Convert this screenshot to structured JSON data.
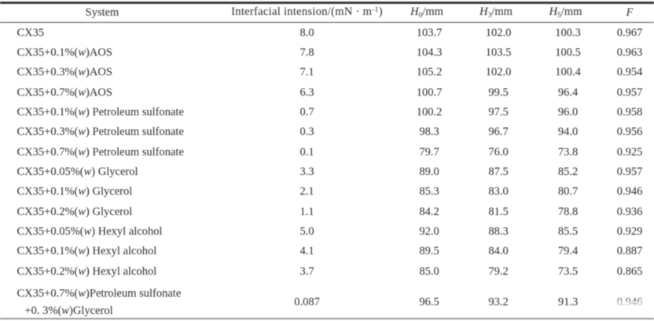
{
  "colors": {
    "background": "#ffffff",
    "text": "#2e2e2e",
    "rule_top": "#3a3a3a",
    "rule_mid": "#4a4a4a",
    "rule_bottom": "#999999"
  },
  "table": {
    "columns": [
      {
        "key": "system",
        "label": "System"
      },
      {
        "key": "interfacial_tension",
        "label_parts": {
          "pre": "Interfacial intension/(mN · m",
          "sup": "-1",
          "post": ")"
        }
      },
      {
        "key": "h0",
        "label_parts": {
          "var": "H",
          "sub": "0",
          "unit": "/mm"
        }
      },
      {
        "key": "h3",
        "label_parts": {
          "var": "H",
          "sub": "3",
          "unit": "/mm"
        }
      },
      {
        "key": "h5",
        "label_parts": {
          "var": "H",
          "sub": "5",
          "unit": "/mm"
        }
      },
      {
        "key": "f",
        "label_parts": {
          "var": "F"
        }
      }
    ],
    "rows": [
      {
        "system": [
          "CX35"
        ],
        "values": [
          "8.0",
          "103.7",
          "102.0",
          "100.3",
          "0.967"
        ]
      },
      {
        "system": [
          "CX35+0.1%(w)AOS"
        ],
        "values": [
          "7.8",
          "104.3",
          "103.5",
          "100.5",
          "0.963"
        ]
      },
      {
        "system": [
          "CX35+0.3%(w)AOS"
        ],
        "values": [
          "7.1",
          "105.2",
          "102.0",
          "100.4",
          "0.954"
        ]
      },
      {
        "system": [
          "CX35+0.7%(w)AOS"
        ],
        "values": [
          "6.3",
          "100.7",
          "99.5",
          "96.4",
          "0.957"
        ]
      },
      {
        "system": [
          "CX35+0.1%(w) Petroleum sulfonate"
        ],
        "values": [
          "0.7",
          "100.2",
          "97.5",
          "96.0",
          "0.958"
        ]
      },
      {
        "system": [
          "CX35+0.3%(w) Petroleum sulfonate"
        ],
        "values": [
          "0.3",
          "98.3",
          "96.7",
          "94.0",
          "0.956"
        ]
      },
      {
        "system": [
          "CX35+0.7%(w) Petroleum sulfonate"
        ],
        "values": [
          "0.1",
          "79.7",
          "76.0",
          "73.8",
          "0.925"
        ]
      },
      {
        "system": [
          "CX35+0.05%(w) Glycerol"
        ],
        "values": [
          "3.3",
          "89.0",
          "87.5",
          "85.2",
          "0.957"
        ]
      },
      {
        "system": [
          "CX35+0.1%(w) Glycerol"
        ],
        "values": [
          "2.1",
          "85.3",
          "83.0",
          "80.7",
          "0.946"
        ]
      },
      {
        "system": [
          "CX35+0.2%(w) Glycerol"
        ],
        "values": [
          "1.1",
          "84.2",
          "81.5",
          "78.8",
          "0.936"
        ]
      },
      {
        "system": [
          "CX35+0.05%(w) Hexyl alcohol"
        ],
        "values": [
          "5.0",
          "92.0",
          "88.3",
          "85.5",
          "0.929"
        ]
      },
      {
        "system": [
          "CX35+0.1%(w) Hexyl alcohol"
        ],
        "values": [
          "4.1",
          "89.5",
          "84.0",
          "79.4",
          "0.887"
        ]
      },
      {
        "system": [
          "CX35+0.2%(w) Hexyl alcohol"
        ],
        "values": [
          "3.7",
          "85.0",
          "79.2",
          "73.5",
          "0.865"
        ]
      },
      {
        "system": [
          "CX35+0.7%(w)Petroleum sulfonate",
          "+0. 3%(w)Glycerol"
        ],
        "values": [
          "0.087",
          "96.5",
          "93.2",
          "91.3",
          "0.946"
        ],
        "f_print_faded": true
      }
    ]
  },
  "chart_data": {
    "type": "table",
    "title": "",
    "columns": [
      "System",
      "Interfacial intension/(mN·m-1)",
      "H0/mm",
      "H3/mm",
      "H5/mm",
      "F"
    ],
    "rows": [
      [
        "CX35",
        8.0,
        103.7,
        102.0,
        100.3,
        0.967
      ],
      [
        "CX35+0.1%(w)AOS",
        7.8,
        104.3,
        103.5,
        100.5,
        0.963
      ],
      [
        "CX35+0.3%(w)AOS",
        7.1,
        105.2,
        102.0,
        100.4,
        0.954
      ],
      [
        "CX35+0.7%(w)AOS",
        6.3,
        100.7,
        99.5,
        96.4,
        0.957
      ],
      [
        "CX35+0.1%(w) Petroleum sulfonate",
        0.7,
        100.2,
        97.5,
        96.0,
        0.958
      ],
      [
        "CX35+0.3%(w) Petroleum sulfonate",
        0.3,
        98.3,
        96.7,
        94.0,
        0.956
      ],
      [
        "CX35+0.7%(w) Petroleum sulfonate",
        0.1,
        79.7,
        76.0,
        73.8,
        0.925
      ],
      [
        "CX35+0.05%(w) Glycerol",
        3.3,
        89.0,
        87.5,
        85.2,
        0.957
      ],
      [
        "CX35+0.1%(w) Glycerol",
        2.1,
        85.3,
        83.0,
        80.7,
        0.946
      ],
      [
        "CX35+0.2%(w) Glycerol",
        1.1,
        84.2,
        81.5,
        78.8,
        0.936
      ],
      [
        "CX35+0.05%(w) Hexyl alcohol",
        5.0,
        92.0,
        88.3,
        85.5,
        0.929
      ],
      [
        "CX35+0.1%(w) Hexyl alcohol",
        4.1,
        89.5,
        84.0,
        79.4,
        0.887
      ],
      [
        "CX35+0.2%(w) Hexyl alcohol",
        3.7,
        85.0,
        79.2,
        73.5,
        0.865
      ],
      [
        "CX35+0.7%(w)Petroleum sulfonate +0. 3%(w)Glycerol",
        0.087,
        96.5,
        93.2,
        91.3,
        0.946
      ]
    ]
  }
}
